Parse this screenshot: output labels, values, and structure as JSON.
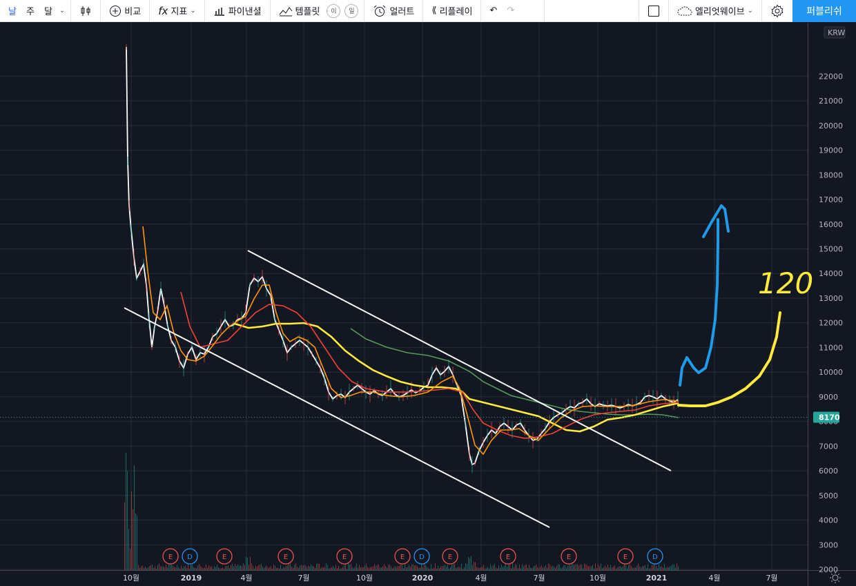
{
  "toolbar": {
    "intervals": [
      "날",
      "주",
      "달"
    ],
    "compare_label": "비교",
    "indicators_label": "지표",
    "financials_label": "파이낸셜",
    "templates_label": "템플릿",
    "template_pills": [
      "이",
      "일"
    ],
    "alert_label": "얼러트",
    "replay_label": "리플레이",
    "layout_name": "엘리엇웨이브",
    "publish_label": "퍼블리쉬"
  },
  "price_axis": {
    "currency": "KRW",
    "labels": [
      "22000",
      "21000",
      "20000",
      "19000",
      "18000",
      "17000",
      "16000",
      "15000",
      "14000",
      "13000",
      "12000",
      "11000",
      "10000",
      "9000",
      "8000",
      "7000",
      "6000",
      "5000",
      "4000",
      "3000",
      "2000"
    ],
    "current_price": "8170"
  },
  "time_axis": {
    "labels": [
      {
        "text": "10월",
        "bold": false
      },
      {
        "text": "2019",
        "bold": true
      },
      {
        "text": "4월",
        "bold": false
      },
      {
        "text": "7월",
        "bold": false
      },
      {
        "text": "10월",
        "bold": false
      },
      {
        "text": "2020",
        "bold": true
      },
      {
        "text": "4월",
        "bold": false
      },
      {
        "text": "7월",
        "bold": false
      },
      {
        "text": "10월",
        "bold": false
      },
      {
        "text": "2021",
        "bold": true
      },
      {
        "text": "4월",
        "bold": false
      },
      {
        "text": "7월",
        "bold": false
      }
    ]
  },
  "events": [
    "E",
    "D",
    "E",
    "E",
    "E",
    "E",
    "D",
    "E",
    "E",
    "E",
    "E",
    "D"
  ],
  "annotation_text": "120",
  "colors": {
    "background": "#131722",
    "grid": "#2a2e39",
    "price_line": "#ffffff",
    "ma_short": "#ff9800",
    "ma_mid": "#f44336",
    "ma_long": "#ffeb3b",
    "ma_200": "#66bb6a",
    "accent": "#2196f3",
    "current_price_badge": "#26a69a"
  }
}
